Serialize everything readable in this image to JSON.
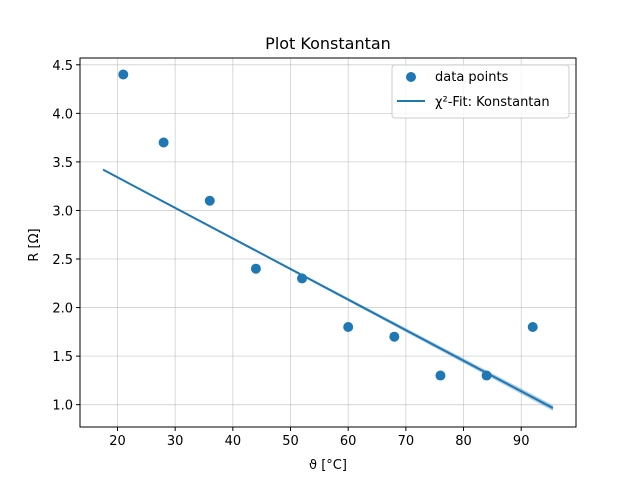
{
  "chart_data": {
    "type": "scatter",
    "title": "Plot Konstantan",
    "xlabel": "ϑ [°C]",
    "ylabel": "R [Ω]",
    "xlim": [
      13.5,
      99.5
    ],
    "ylim": [
      0.77,
      4.57
    ],
    "xticks": [
      20,
      30,
      40,
      50,
      60,
      70,
      80,
      90
    ],
    "yticks": [
      1.0,
      1.5,
      2.0,
      2.5,
      3.0,
      3.5,
      4.0,
      4.5
    ],
    "xtick_labels": [
      "20",
      "30",
      "40",
      "50",
      "60",
      "70",
      "80",
      "90"
    ],
    "ytick_labels": [
      "1.0",
      "1.5",
      "2.0",
      "2.5",
      "3.0",
      "3.5",
      "4.0",
      "4.5"
    ],
    "grid": true,
    "legend_position": "top-right",
    "series": [
      {
        "name": "data points",
        "kind": "scatter",
        "color": "#1f77b4",
        "x": [
          21,
          28,
          36,
          44,
          52,
          60,
          68,
          76,
          84,
          92
        ],
        "y": [
          4.4,
          3.7,
          3.1,
          2.4,
          2.3,
          1.8,
          1.7,
          1.3,
          1.3,
          1.8
        ]
      },
      {
        "name": "χ²-Fit: Konstantan",
        "kind": "line",
        "color": "#1f77b4",
        "x": [
          17.5,
          95.5
        ],
        "y": [
          3.42,
          0.965
        ],
        "band_upper": [
          3.42,
          0.995
        ],
        "band_lower": [
          3.42,
          0.935
        ]
      }
    ]
  }
}
